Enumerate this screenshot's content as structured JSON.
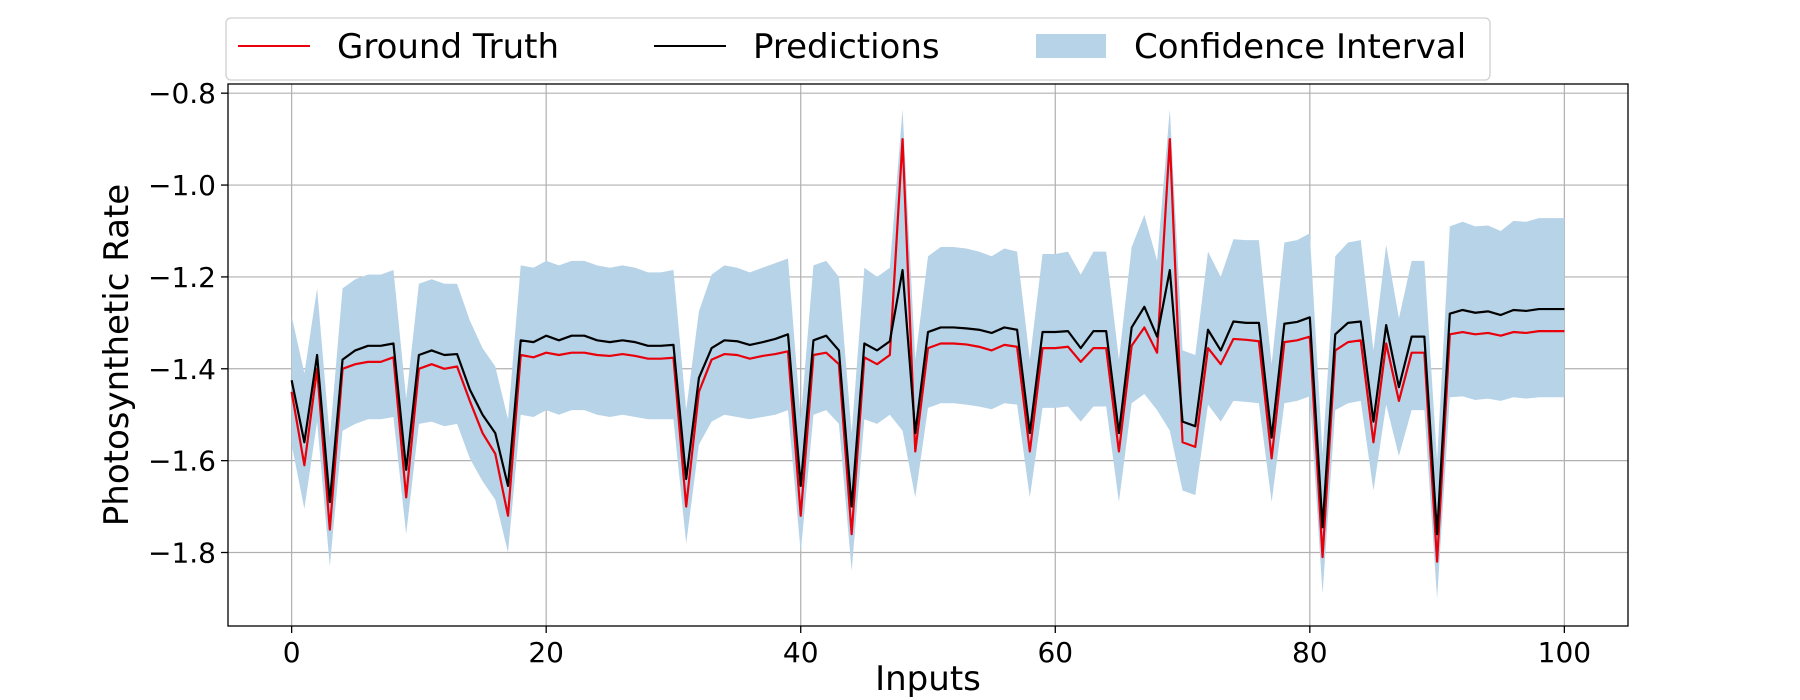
{
  "chart_data": {
    "type": "line",
    "xlabel": "Inputs",
    "ylabel": "Photosynthetic Rate",
    "xlim": [
      -5,
      105
    ],
    "ylim": [
      -1.96,
      -0.78
    ],
    "xticks": [
      0,
      20,
      40,
      60,
      80,
      100
    ],
    "yticks": [
      -1.8,
      -1.6,
      -1.4,
      -1.2,
      -1.0,
      -0.8
    ],
    "xtick_labels": [
      "0",
      "20",
      "40",
      "60",
      "80",
      "100"
    ],
    "ytick_labels": [
      "−1.8",
      "−1.6",
      "−1.4",
      "−1.2",
      "−1.0",
      "−0.8"
    ],
    "grid": true,
    "legend_position": "top",
    "colors": {
      "ground_truth": "#e8000b",
      "predictions": "#000000",
      "confidence_interval": "#b7d3e8"
    },
    "x": [
      0,
      1,
      2,
      3,
      4,
      5,
      6,
      7,
      8,
      9,
      10,
      11,
      12,
      13,
      14,
      15,
      16,
      17,
      18,
      19,
      20,
      21,
      22,
      23,
      24,
      25,
      26,
      27,
      28,
      29,
      30,
      31,
      32,
      33,
      34,
      35,
      36,
      37,
      38,
      39,
      40,
      41,
      42,
      43,
      44,
      45,
      46,
      47,
      48,
      49,
      50,
      51,
      52,
      53,
      54,
      55,
      56,
      57,
      58,
      59,
      60,
      61,
      62,
      63,
      64,
      65,
      66,
      67,
      68,
      69,
      70,
      71,
      72,
      73,
      74,
      75,
      76,
      77,
      78,
      79,
      80,
      81,
      82,
      83,
      84,
      85,
      86,
      87,
      88,
      89,
      90,
      91,
      92,
      93,
      94,
      95,
      96,
      97,
      98,
      99,
      100
    ],
    "series": [
      {
        "name": "Ground Truth",
        "values": [
          -1.45,
          -1.61,
          -1.4,
          -1.75,
          -1.4,
          -1.39,
          -1.385,
          -1.385,
          -1.375,
          -1.68,
          -1.4,
          -1.39,
          -1.4,
          -1.395,
          -1.47,
          -1.54,
          -1.585,
          -1.72,
          -1.37,
          -1.375,
          -1.365,
          -1.37,
          -1.365,
          -1.365,
          -1.37,
          -1.372,
          -1.368,
          -1.372,
          -1.378,
          -1.378,
          -1.376,
          -1.7,
          -1.45,
          -1.38,
          -1.368,
          -1.37,
          -1.378,
          -1.372,
          -1.368,
          -1.362,
          -1.72,
          -1.37,
          -1.365,
          -1.39,
          -1.76,
          -1.375,
          -1.39,
          -1.37,
          -0.9,
          -1.58,
          -1.355,
          -1.345,
          -1.345,
          -1.347,
          -1.352,
          -1.36,
          -1.348,
          -1.352,
          -1.58,
          -1.355,
          -1.355,
          -1.352,
          -1.385,
          -1.355,
          -1.355,
          -1.58,
          -1.35,
          -1.31,
          -1.365,
          -0.9,
          -1.56,
          -1.57,
          -1.355,
          -1.39,
          -1.335,
          -1.337,
          -1.34,
          -1.595,
          -1.342,
          -1.338,
          -1.33,
          -1.81,
          -1.36,
          -1.342,
          -1.338,
          -1.56,
          -1.345,
          -1.47,
          -1.365,
          -1.365,
          -1.82,
          -1.325,
          -1.32,
          -1.325,
          -1.322,
          -1.328,
          -1.32,
          -1.322,
          -1.318,
          -1.318,
          -1.318
        ]
      },
      {
        "name": "Predictions",
        "values": [
          -1.425,
          -1.56,
          -1.37,
          -1.69,
          -1.38,
          -1.36,
          -1.35,
          -1.35,
          -1.345,
          -1.62,
          -1.37,
          -1.36,
          -1.37,
          -1.368,
          -1.445,
          -1.5,
          -1.54,
          -1.655,
          -1.338,
          -1.342,
          -1.328,
          -1.338,
          -1.328,
          -1.328,
          -1.338,
          -1.342,
          -1.338,
          -1.342,
          -1.35,
          -1.35,
          -1.348,
          -1.64,
          -1.42,
          -1.355,
          -1.338,
          -1.34,
          -1.348,
          -1.342,
          -1.335,
          -1.325,
          -1.655,
          -1.338,
          -1.328,
          -1.36,
          -1.7,
          -1.345,
          -1.36,
          -1.34,
          -1.185,
          -1.54,
          -1.32,
          -1.31,
          -1.31,
          -1.312,
          -1.315,
          -1.322,
          -1.31,
          -1.315,
          -1.54,
          -1.32,
          -1.32,
          -1.318,
          -1.355,
          -1.318,
          -1.318,
          -1.54,
          -1.31,
          -1.265,
          -1.33,
          -1.185,
          -1.515,
          -1.525,
          -1.315,
          -1.36,
          -1.297,
          -1.3,
          -1.3,
          -1.55,
          -1.302,
          -1.298,
          -1.288,
          -1.745,
          -1.325,
          -1.3,
          -1.297,
          -1.515,
          -1.305,
          -1.44,
          -1.33,
          -1.33,
          -1.76,
          -1.28,
          -1.272,
          -1.278,
          -1.275,
          -1.283,
          -1.272,
          -1.274,
          -1.27,
          -1.27,
          -1.27
        ]
      },
      {
        "name": "Confidence Interval",
        "upper": [
          -1.285,
          -1.41,
          -1.225,
          -1.55,
          -1.225,
          -1.205,
          -1.195,
          -1.195,
          -1.185,
          -1.465,
          -1.215,
          -1.205,
          -1.215,
          -1.215,
          -1.295,
          -1.355,
          -1.395,
          -1.51,
          -1.175,
          -1.18,
          -1.165,
          -1.175,
          -1.165,
          -1.165,
          -1.175,
          -1.18,
          -1.175,
          -1.18,
          -1.19,
          -1.19,
          -1.185,
          -1.49,
          -1.275,
          -1.195,
          -1.175,
          -1.18,
          -1.19,
          -1.18,
          -1.17,
          -1.16,
          -1.51,
          -1.175,
          -1.165,
          -1.2,
          -1.54,
          -1.18,
          -1.2,
          -1.18,
          -0.835,
          -1.38,
          -1.155,
          -1.135,
          -1.135,
          -1.138,
          -1.145,
          -1.155,
          -1.138,
          -1.145,
          -1.38,
          -1.15,
          -1.15,
          -1.145,
          -1.195,
          -1.145,
          -1.145,
          -1.38,
          -1.135,
          -1.065,
          -1.165,
          -0.835,
          -1.36,
          -1.37,
          -1.145,
          -1.2,
          -1.118,
          -1.12,
          -1.12,
          -1.39,
          -1.125,
          -1.12,
          -1.105,
          -1.585,
          -1.155,
          -1.125,
          -1.12,
          -1.36,
          -1.13,
          -1.29,
          -1.165,
          -1.165,
          -1.6,
          -1.09,
          -1.08,
          -1.09,
          -1.088,
          -1.1,
          -1.078,
          -1.08,
          -1.072,
          -1.072,
          -1.072
        ],
        "lower": [
          -1.565,
          -1.705,
          -1.515,
          -1.83,
          -1.535,
          -1.52,
          -1.51,
          -1.51,
          -1.505,
          -1.76,
          -1.52,
          -1.515,
          -1.525,
          -1.52,
          -1.595,
          -1.645,
          -1.685,
          -1.8,
          -1.5,
          -1.505,
          -1.49,
          -1.5,
          -1.49,
          -1.49,
          -1.5,
          -1.505,
          -1.5,
          -1.505,
          -1.51,
          -1.51,
          -1.51,
          -1.78,
          -1.565,
          -1.515,
          -1.5,
          -1.505,
          -1.51,
          -1.505,
          -1.5,
          -1.49,
          -1.8,
          -1.5,
          -1.49,
          -1.52,
          -1.84,
          -1.51,
          -1.52,
          -1.5,
          -1.535,
          -1.68,
          -1.485,
          -1.475,
          -1.475,
          -1.478,
          -1.482,
          -1.488,
          -1.475,
          -1.478,
          -1.68,
          -1.485,
          -1.485,
          -1.482,
          -1.515,
          -1.482,
          -1.482,
          -1.69,
          -1.475,
          -1.455,
          -1.49,
          -1.535,
          -1.665,
          -1.675,
          -1.478,
          -1.515,
          -1.47,
          -1.472,
          -1.475,
          -1.69,
          -1.475,
          -1.47,
          -1.46,
          -1.89,
          -1.49,
          -1.475,
          -1.47,
          -1.665,
          -1.478,
          -1.59,
          -1.49,
          -1.49,
          -1.9,
          -1.462,
          -1.46,
          -1.468,
          -1.465,
          -1.47,
          -1.462,
          -1.465,
          -1.462,
          -1.462,
          -1.462
        ]
      }
    ],
    "legend": {
      "entries": [
        "Ground Truth",
        "Predictions",
        "Confidence Interval"
      ]
    }
  }
}
